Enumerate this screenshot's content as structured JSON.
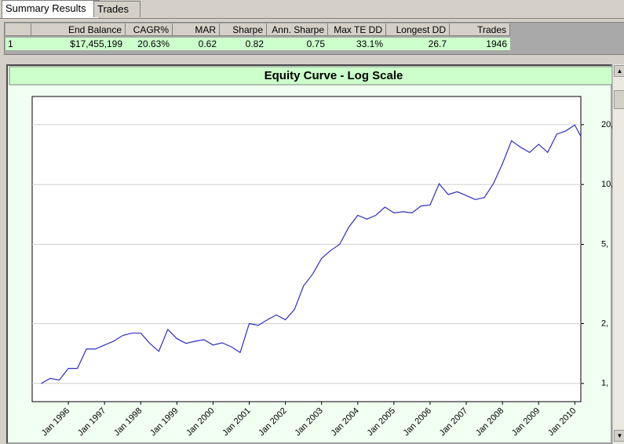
{
  "tabs": [
    "Summary Results",
    "Trades"
  ],
  "table": {
    "columns": [
      "End Balance",
      "CAGR%",
      "MAR",
      "Sharpe",
      "Ann. Sharpe",
      "Max TE DD",
      "Longest DD",
      "Trades"
    ],
    "rows": [
      [
        "1",
        "$17,455,199",
        "20.63%",
        "0.62",
        "0.82",
        "0.75",
        "33.1%",
        "26.7",
        "1946"
      ]
    ]
  },
  "chart_data": {
    "type": "line",
    "title": "Equity Curve - Log Scale",
    "log_scale": true,
    "grid": true,
    "x": [
      "1995-04",
      "1995-07",
      "1995-10",
      "1996-01",
      "1996-04",
      "1996-07",
      "1996-10",
      "1997-01",
      "1997-04",
      "1997-07",
      "1997-10",
      "1998-01",
      "1998-04",
      "1998-07",
      "1998-10",
      "1999-01",
      "1999-04",
      "1999-07",
      "1999-10",
      "2000-01",
      "2000-04",
      "2000-07",
      "2000-10",
      "2001-01",
      "2001-04",
      "2001-07",
      "2001-10",
      "2002-01",
      "2002-04",
      "2002-07",
      "2002-10",
      "2003-01",
      "2003-04",
      "2003-07",
      "2003-10",
      "2004-01",
      "2004-04",
      "2004-07",
      "2004-10",
      "2005-01",
      "2005-04",
      "2005-07",
      "2005-10",
      "2006-01",
      "2006-04",
      "2006-07",
      "2006-10",
      "2007-01",
      "2007-04",
      "2007-07",
      "2007-10",
      "2008-01",
      "2008-04",
      "2008-07",
      "2008-10",
      "2009-01",
      "2009-04",
      "2009-07",
      "2009-10",
      "2010-01",
      "2010-03"
    ],
    "series": [
      {
        "color": "#2f2fc0",
        "values": [
          1000000,
          1060000,
          1040000,
          1190000,
          1190000,
          1490000,
          1490000,
          1560000,
          1630000,
          1740000,
          1790000,
          1790000,
          1590000,
          1450000,
          1870000,
          1680000,
          1590000,
          1630000,
          1660000,
          1560000,
          1600000,
          1530000,
          1430000,
          2000000,
          1960000,
          2090000,
          2210000,
          2090000,
          2350000,
          3090000,
          3540000,
          4250000,
          4660000,
          5000000,
          6100000,
          7000000,
          6700000,
          7000000,
          7700000,
          7200000,
          7300000,
          7200000,
          7800000,
          7900000,
          10100000,
          8900000,
          9200000,
          8800000,
          8400000,
          8600000,
          10100000,
          12700000,
          16600000,
          15400000,
          14500000,
          15900000,
          14500000,
          17900000,
          18600000,
          19900000,
          17450000
        ]
      }
    ],
    "xlim": [
      "1995-01",
      "2010-03"
    ],
    "xticks": [
      {
        "value": "1996-01",
        "label": "Jan 1996"
      },
      {
        "value": "1997-01",
        "label": "Jan 1997"
      },
      {
        "value": "1998-01",
        "label": "Jan 1998"
      },
      {
        "value": "1999-01",
        "label": "Jan 1999"
      },
      {
        "value": "2000-01",
        "label": "Jan 2000"
      },
      {
        "value": "2001-01",
        "label": "Jan 2001"
      },
      {
        "value": "2002-01",
        "label": "Jan 2002"
      },
      {
        "value": "2003-01",
        "label": "Jan 2003"
      },
      {
        "value": "2004-01",
        "label": "Jan 2004"
      },
      {
        "value": "2005-01",
        "label": "Jan 2005"
      },
      {
        "value": "2006-01",
        "label": "Jan 2006"
      },
      {
        "value": "2007-01",
        "label": "Jan 2007"
      },
      {
        "value": "2008-01",
        "label": "Jan 2008"
      },
      {
        "value": "2009-01",
        "label": "Jan 2009"
      },
      {
        "value": "2010-01",
        "label": "Jan 2010"
      }
    ],
    "ylim": [
      810000,
      27700000
    ],
    "yticks": [
      {
        "value": 1000000,
        "label": "1,"
      },
      {
        "value": 2000000,
        "label": "2,"
      },
      {
        "value": 5000000,
        "label": "5,"
      },
      {
        "value": 10000000,
        "label": "10,"
      },
      {
        "value": 20000000,
        "label": "20,"
      }
    ]
  }
}
